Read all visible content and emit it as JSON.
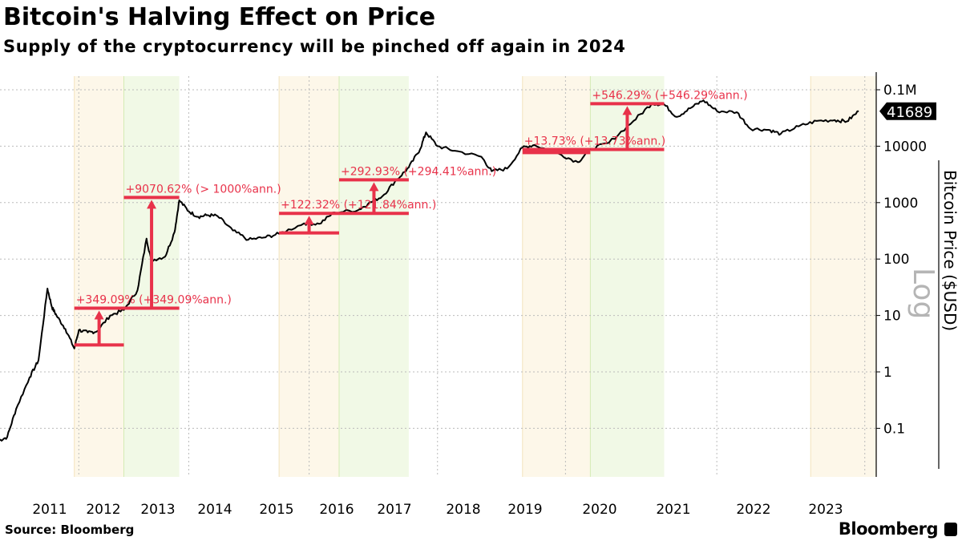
{
  "header": {
    "title": "Bitcoin's Halving Effect on Price",
    "subtitle": "Supply of the cryptocurrency will be pinched off again in 2024"
  },
  "footer": {
    "source": "Source: Bloomberg",
    "brand": "Bloomberg"
  },
  "chart_data": {
    "type": "line",
    "title": "Bitcoin's Halving Effect on Price",
    "ylabel": "Bitcoin Price ($USD)",
    "scale_label": "Log",
    "yscale": "log",
    "ylim": [
      0.015,
      250000
    ],
    "xlim": [
      "2010-07",
      "2024-04"
    ],
    "grid": true,
    "colors": {
      "line": "#000000",
      "annotation": "#e8324a",
      "pre_halving_band": "#fdf7e9",
      "post_halving_band": "#f1f9e6",
      "last_value_badge": "#000000"
    },
    "x_tick_labels": [
      "2011",
      "2012",
      "2013",
      "2014",
      "2015",
      "2016",
      "2017",
      "2018",
      "2019",
      "2020",
      "2021",
      "2022",
      "2023"
    ],
    "y_ticks": [
      {
        "value": 0.1,
        "label": "0.1"
      },
      {
        "value": 1,
        "label": "1"
      },
      {
        "value": 10,
        "label": "10"
      },
      {
        "value": 100,
        "label": "100"
      },
      {
        "value": 1000,
        "label": "1000"
      },
      {
        "value": 10000,
        "label": "10000"
      },
      {
        "value": 100000,
        "label": "0.1M"
      }
    ],
    "x_gridlines": [
      "2012-01",
      "2014-01",
      "2016-01",
      "2018-02",
      "2020-01",
      "2022-01",
      "2024-01"
    ],
    "last_value": {
      "value": 41689,
      "label": "41689"
    },
    "series": [
      {
        "points": [
          [
            "2010-07",
            0.06
          ],
          [
            "2010-09",
            0.07
          ],
          [
            "2010-11",
            0.22
          ],
          [
            "2011-02",
            0.8
          ],
          [
            "2011-04",
            1.6
          ],
          [
            "2011-06",
            30
          ],
          [
            "2011-07",
            14
          ],
          [
            "2011-08",
            10
          ],
          [
            "2011-10",
            5.8
          ],
          [
            "2011-12",
            2.6
          ],
          [
            "2012-01",
            5.5
          ],
          [
            "2012-03",
            5.0
          ],
          [
            "2012-05",
            5.2
          ],
          [
            "2012-08",
            10
          ],
          [
            "2012-11",
            12.5
          ],
          [
            "2013-02",
            28
          ],
          [
            "2013-04",
            230
          ],
          [
            "2013-05",
            95
          ],
          [
            "2013-08",
            110
          ],
          [
            "2013-10",
            300
          ],
          [
            "2013-11",
            1100
          ],
          [
            "2014-01",
            700
          ],
          [
            "2014-03",
            560
          ],
          [
            "2014-05",
            600
          ],
          [
            "2014-07",
            580
          ],
          [
            "2014-10",
            320
          ],
          [
            "2015-01",
            220
          ],
          [
            "2015-04",
            240
          ],
          [
            "2015-07",
            280
          ],
          [
            "2015-12",
            430
          ],
          [
            "2016-03",
            420
          ],
          [
            "2016-06",
            670
          ],
          [
            "2016-11",
            740
          ],
          [
            "2017-01",
            950
          ],
          [
            "2017-04",
            1300
          ],
          [
            "2017-07",
            2600
          ],
          [
            "2017-09",
            4200
          ],
          [
            "2017-11",
            9000
          ],
          [
            "2017-12",
            17600
          ],
          [
            "2018-02",
            10000
          ],
          [
            "2018-05",
            8300
          ],
          [
            "2018-10",
            6500
          ],
          [
            "2018-12",
            3600
          ],
          [
            "2019-03",
            4000
          ],
          [
            "2019-06",
            9500
          ],
          [
            "2019-08",
            10500
          ],
          [
            "2019-12",
            7300
          ],
          [
            "2020-03",
            5200
          ],
          [
            "2020-05",
            8900
          ],
          [
            "2020-08",
            11500
          ],
          [
            "2020-12",
            28000
          ],
          [
            "2021-03",
            57000
          ],
          [
            "2021-05",
            55000
          ],
          [
            "2021-07",
            33000
          ],
          [
            "2021-09",
            47000
          ],
          [
            "2021-11",
            65000
          ],
          [
            "2022-01",
            42000
          ],
          [
            "2022-04",
            40000
          ],
          [
            "2022-06",
            20500
          ],
          [
            "2022-09",
            19500
          ],
          [
            "2022-11",
            16500
          ],
          [
            "2023-02",
            22500
          ],
          [
            "2023-05",
            28000
          ],
          [
            "2023-08",
            29000
          ],
          [
            "2023-10",
            27500
          ],
          [
            "2023-12",
            41689
          ]
        ]
      }
    ],
    "bands": [
      {
        "type": "pre_halving",
        "start": "2011-12",
        "end": "2012-11"
      },
      {
        "type": "post_halving",
        "start": "2012-11",
        "end": "2013-11"
      },
      {
        "type": "pre_halving",
        "start": "2015-07",
        "end": "2016-07"
      },
      {
        "type": "post_halving",
        "start": "2016-07",
        "end": "2017-09"
      },
      {
        "type": "pre_halving",
        "start": "2019-06",
        "end": "2020-05"
      },
      {
        "type": "post_halving",
        "start": "2020-05",
        "end": "2021-05"
      },
      {
        "type": "pre_halving",
        "start": "2023-04",
        "end": "2024-03"
      }
    ],
    "annotations": [
      {
        "start": "2011-12",
        "end": "2012-11",
        "from": 3.0,
        "to": 13.47,
        "label": "+349.09% (+349.09%ann.)"
      },
      {
        "start": "2012-11",
        "end": "2013-11",
        "from": 13.47,
        "to": 1235,
        "label": "+9070.62% (> 1000%ann.)"
      },
      {
        "start": "2015-07",
        "end": "2016-07",
        "from": 290,
        "to": 645,
        "label": "+122.32% (+121.84%ann.)"
      },
      {
        "start": "2016-07",
        "end": "2017-09",
        "from": 645,
        "to": 2534,
        "label": "+292.93% (+294.41%ann.)"
      },
      {
        "start": "2019-06",
        "end": "2020-05",
        "from": 7700,
        "to": 8757,
        "label": "+13.73% (+13.73%ann.)"
      },
      {
        "start": "2020-05",
        "end": "2021-05",
        "from": 8757,
        "to": 56596,
        "label": "+546.29% (+546.29%ann.)"
      }
    ]
  }
}
